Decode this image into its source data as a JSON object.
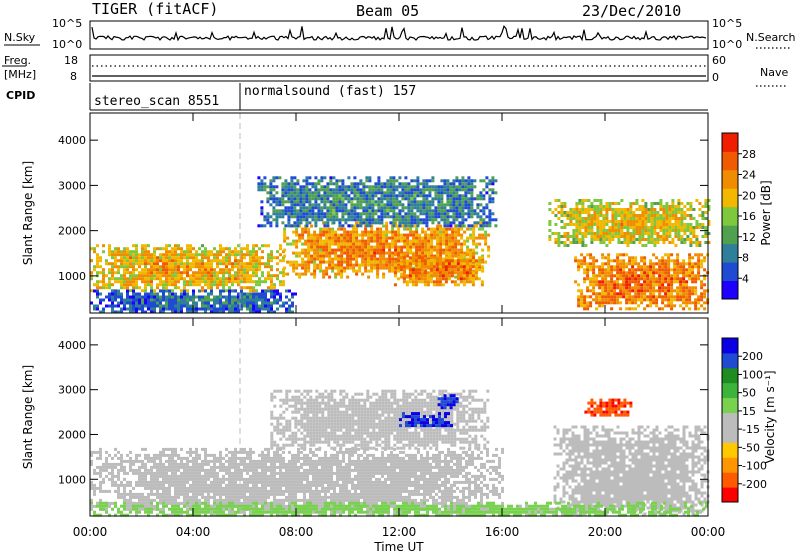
{
  "header": {
    "title": "TIGER (fitACF)",
    "beam": "Beam 05",
    "date": "23/Dec/2010"
  },
  "top_panels": {
    "nsky_label": "N.Sky",
    "nsearch_label": "N.Search",
    "nsky_ticks": [
      "10^5",
      "10^0"
    ],
    "nsky_right_ticks": [
      "10^5",
      "10^0"
    ],
    "freq_label_line1": "Freq.",
    "freq_label_line2": "[MHz]",
    "freq_ticks": [
      "18",
      "8"
    ],
    "nave_ticks": [
      "60",
      "0"
    ],
    "nave_label": "Nave",
    "cpid_label": "CPID",
    "cpid_segments": [
      {
        "name": "stereo_scan 8551",
        "start_hour": 0,
        "end_hour": 6
      },
      {
        "name": "normalsound (fast) 157",
        "start_hour": 6,
        "end_hour": 24
      }
    ]
  },
  "time_axis": {
    "label": "Time UT",
    "ticks": [
      "00:00",
      "04:00",
      "08:00",
      "12:00",
      "16:00",
      "20:00",
      "00:00"
    ],
    "tick_hours": [
      0,
      4,
      8,
      12,
      16,
      20,
      24
    ]
  },
  "colors": {
    "power": [
      "#1e00ff",
      "#1e4bd2",
      "#2f7f9a",
      "#4fa04f",
      "#7dc83c",
      "#f2b800",
      "#f08c00",
      "#f05a00",
      "#f01e00"
    ],
    "velocity": [
      "#ff0000",
      "#ff5a00",
      "#ff9600",
      "#ffc800",
      "#bcbcbc",
      "#bcbcbc",
      "#78d250",
      "#3cb43c",
      "#1e8c1e",
      "#1e4bd2",
      "#0a00e6"
    ],
    "cpid_line": "#000000"
  },
  "chart_data": [
    {
      "type": "heatmap",
      "name_key": "power",
      "ylabel": "Slant Range [km]",
      "xlabel": "",
      "xlim": [
        0,
        24
      ],
      "ylim": [
        180,
        4600
      ],
      "yticks": [
        1000,
        2000,
        3000,
        4000
      ],
      "colorbar": {
        "label": "Power [dB]",
        "ticks": [
          "28",
          "24",
          "20",
          "16",
          "12",
          "8",
          "4"
        ],
        "range": [
          0,
          30
        ]
      },
      "echo_bands": [
        {
          "start_hour": 0,
          "end_hour": 7.5,
          "range_min": 700,
          "range_max": 1700,
          "level": 22
        },
        {
          "start_hour": 7.5,
          "end_hour": 15.5,
          "range_min": 1000,
          "range_max": 2200,
          "level": 24
        },
        {
          "start_hour": 6.5,
          "end_hour": 15.8,
          "range_min": 2100,
          "range_max": 3200,
          "level": 10
        },
        {
          "start_hour": 11.8,
          "end_hour": 15.2,
          "range_min": 800,
          "range_max": 1500,
          "level": 26
        },
        {
          "start_hour": 17.8,
          "end_hour": 24,
          "range_min": 1700,
          "range_max": 2700,
          "level": 20
        },
        {
          "start_hour": 18.8,
          "end_hour": 24,
          "range_min": 300,
          "range_max": 1500,
          "level": 26
        },
        {
          "start_hour": 0,
          "end_hour": 8,
          "range_min": 200,
          "range_max": 700,
          "level": 8
        }
      ]
    },
    {
      "type": "heatmap",
      "name_key": "velocity",
      "ylabel": "Slant Range [km]",
      "xlabel": "Time UT",
      "xlim": [
        0,
        24
      ],
      "ylim": [
        180,
        4600
      ],
      "yticks": [
        1000,
        2000,
        3000,
        4000
      ],
      "colorbar": {
        "label": "Velocity [m s⁻¹]",
        "ticks": [
          "200",
          "100",
          "50",
          "15",
          "-15",
          "-50",
          "-100",
          "-200"
        ],
        "range": [
          -250,
          250
        ]
      },
      "echo_bands": [
        {
          "start_hour": 0,
          "end_hour": 16,
          "range_min": 300,
          "range_max": 1700,
          "velocity": 0
        },
        {
          "start_hour": 7,
          "end_hour": 15.5,
          "range_min": 1700,
          "range_max": 3000,
          "velocity": 5
        },
        {
          "start_hour": 12,
          "end_hour": 14,
          "range_min": 2200,
          "range_max": 2500,
          "velocity": 230
        },
        {
          "start_hour": 13.5,
          "end_hour": 14.3,
          "range_min": 2600,
          "range_max": 2900,
          "velocity": 220
        },
        {
          "start_hour": 19.2,
          "end_hour": 21,
          "range_min": 2400,
          "range_max": 2800,
          "velocity": -220
        },
        {
          "start_hour": 18,
          "end_hour": 24,
          "range_min": 200,
          "range_max": 2200,
          "velocity": 0
        },
        {
          "start_hour": 0,
          "end_hour": 24,
          "range_min": 200,
          "range_max": 500,
          "velocity": 40
        }
      ]
    }
  ]
}
